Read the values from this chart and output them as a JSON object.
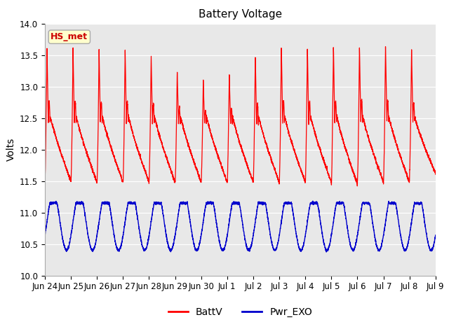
{
  "title": "Battery Voltage",
  "ylabel": "Volts",
  "ylim": [
    10.0,
    14.0
  ],
  "yticks": [
    10.0,
    10.5,
    11.0,
    11.5,
    12.0,
    12.5,
    13.0,
    13.5,
    14.0
  ],
  "xtick_labels": [
    "Jun 24",
    "Jun 25",
    "Jun 26",
    "Jun 27",
    "Jun 28",
    "Jun 29",
    "Jun 30",
    "Jul 1",
    "Jul 2",
    "Jul 3",
    "Jul 4",
    "Jul 5",
    "Jul 6",
    "Jul 7",
    "Jul 8",
    "Jul 9"
  ],
  "annotation_text": "HS_met",
  "annotation_color": "#cc0000",
  "annotation_bg": "#ffffcc",
  "line1_color": "#ff0000",
  "line2_color": "#0000cc",
  "legend_labels": [
    "BattV",
    "Pwr_EXO"
  ],
  "plot_bg_color": "#e8e8e8",
  "fig_bg_color": "#ffffff",
  "title_fontsize": 11,
  "axis_label_fontsize": 10,
  "tick_fontsize": 8.5
}
